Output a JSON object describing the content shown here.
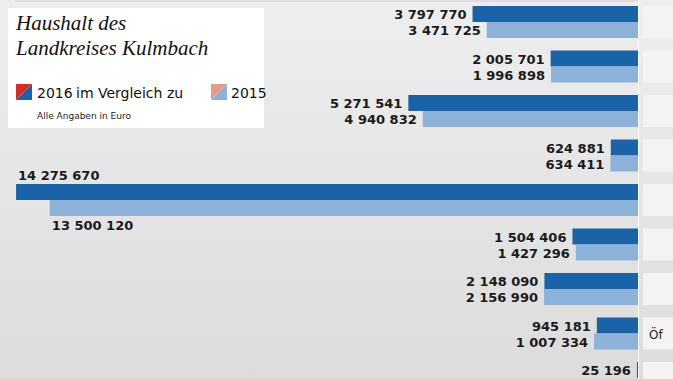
{
  "chart_data": {
    "type": "bar",
    "orientation": "horizontal",
    "title": "Haushalt des Landkreises Kulmbach",
    "subtitle": "Alle Angaben in Euro",
    "annotations": [
      "im Vergleich zu"
    ],
    "categories": [
      null,
      null,
      null,
      null,
      null,
      null,
      null,
      "Öf",
      null
    ],
    "series": [
      {
        "name": "2016",
        "color": "#1a63a6",
        "values": [
          3797770,
          2005701,
          5271541,
          624881,
          14275670,
          1504406,
          2148090,
          945181,
          25196
        ],
        "value_labels": [
          "3 797 770",
          "2 005 701",
          "5 271 541",
          "624 881",
          "14 275 670",
          "1 504 406",
          "2 148 090",
          "945 181",
          "25 196"
        ]
      },
      {
        "name": "2015",
        "color": "#8db2da",
        "values": [
          3471725,
          1996898,
          4940832,
          634411,
          13500120,
          1427296,
          2156990,
          1007334,
          null
        ],
        "value_labels": [
          "3 471 725",
          "1 996 898",
          "4 940 832",
          "634 411",
          "13 500 120",
          "1 427 296",
          "2 156 990",
          "1 007 334",
          null
        ]
      }
    ],
    "xlim": [
      0,
      14300000
    ],
    "data_labels": true,
    "tick_labels": false,
    "grid": false,
    "legend": "upper left"
  }
}
